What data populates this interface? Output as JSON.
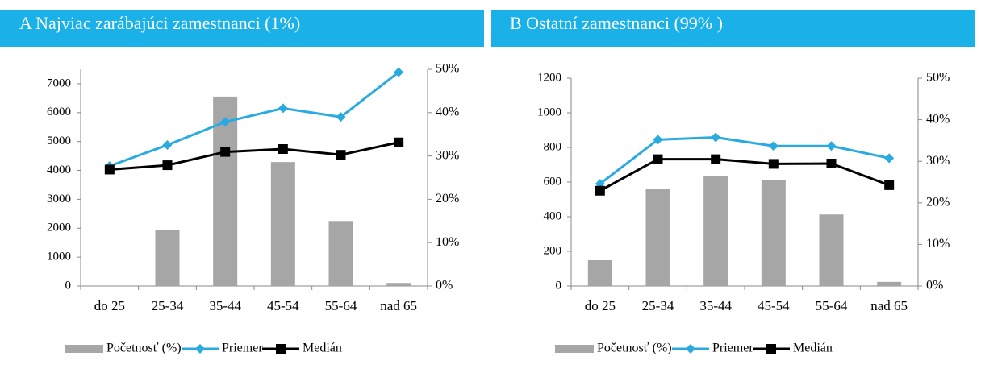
{
  "chart_data": [
    {
      "type": "bar",
      "title": "A  Najviac zarábajúci zamestnanci (1%)",
      "categories": [
        "do 25",
        "25-34",
        "35-44",
        "45-54",
        "55-64",
        "nad 65"
      ],
      "series": [
        {
          "name": "Početnosť (%)",
          "type": "bar",
          "axis": "y2",
          "color": "#a6a6a6",
          "values": [
            0,
            13,
            43.7,
            28.6,
            15,
            0.7
          ]
        },
        {
          "name": "Priemer",
          "type": "line",
          "color": "#29abe2",
          "marker": "diamond",
          "values": [
            4150,
            4880,
            5680,
            6150,
            5850,
            7400
          ]
        },
        {
          "name": "Medián",
          "type": "line",
          "color": "#000000",
          "marker": "square",
          "values": [
            4030,
            4180,
            4640,
            4740,
            4540,
            4970
          ]
        }
      ],
      "ylim": [
        0,
        7500
      ],
      "yticks": [
        0,
        1000,
        2000,
        3000,
        4000,
        5000,
        6000,
        7000
      ],
      "y2lim": [
        0,
        50
      ],
      "y2ticks": [
        {
          "value": 0,
          "label": "0%"
        },
        {
          "value": 10,
          "label": "10%"
        },
        {
          "value": 20,
          "label": "20%"
        },
        {
          "value": 30,
          "label": "30%"
        },
        {
          "value": 40,
          "label": "40%"
        },
        {
          "value": 50,
          "label": "50%"
        }
      ]
    },
    {
      "type": "bar",
      "title": "B Ostatní zamestnanci (99% )",
      "categories": [
        "do 25",
        "25-34",
        "35-44",
        "45-54",
        "55-64",
        "nad 65"
      ],
      "series": [
        {
          "name": "Početnosť (%)",
          "type": "bar",
          "axis": "y2",
          "color": "#a6a6a6",
          "values": [
            6.2,
            23.4,
            26.5,
            25.4,
            17.2,
            1
          ]
        },
        {
          "name": "Priemer",
          "type": "line",
          "color": "#29abe2",
          "marker": "diamond",
          "values": [
            590,
            845,
            858,
            808,
            808,
            738
          ]
        },
        {
          "name": "Medián",
          "type": "line",
          "color": "#000000",
          "marker": "square",
          "values": [
            550,
            732,
            732,
            705,
            707,
            582
          ]
        }
      ],
      "ylim": [
        0,
        1200
      ],
      "yticks": [
        0,
        200,
        400,
        600,
        800,
        1000,
        1200
      ],
      "y2lim": [
        0,
        50
      ],
      "y2ticks": [
        {
          "value": 0,
          "label": "0%"
        },
        {
          "value": 10,
          "label": "10%"
        },
        {
          "value": 20,
          "label": "20%"
        },
        {
          "value": 30,
          "label": "30%"
        },
        {
          "value": 40,
          "label": "40%"
        },
        {
          "value": 50,
          "label": "50%"
        }
      ]
    }
  ]
}
